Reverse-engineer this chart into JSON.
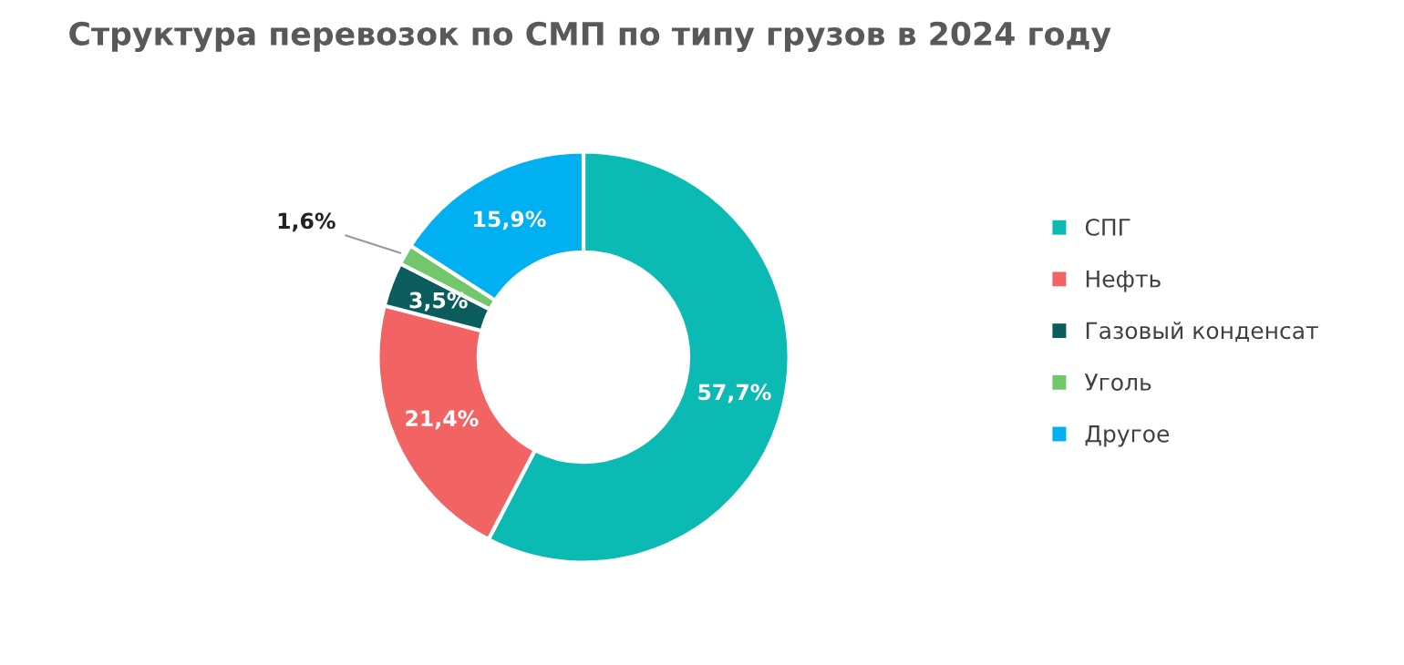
{
  "chart_data": {
    "type": "donut",
    "title": "Структура перевозок по СМП по типу грузов в 2024 году",
    "categories": [
      "СПГ",
      "Нефть",
      "Газовый конденсат",
      "Уголь",
      "Другое"
    ],
    "values": [
      57.7,
      21.4,
      3.5,
      1.6,
      15.9
    ],
    "value_labels": [
      "57,7%",
      "21,4%",
      "3,5%",
      "1,6%",
      "15,9%"
    ],
    "colors": [
      "#0cbab4",
      "#f26464",
      "#0b5c5c",
      "#72c66b",
      "#00b0f0"
    ],
    "legend": "right"
  }
}
